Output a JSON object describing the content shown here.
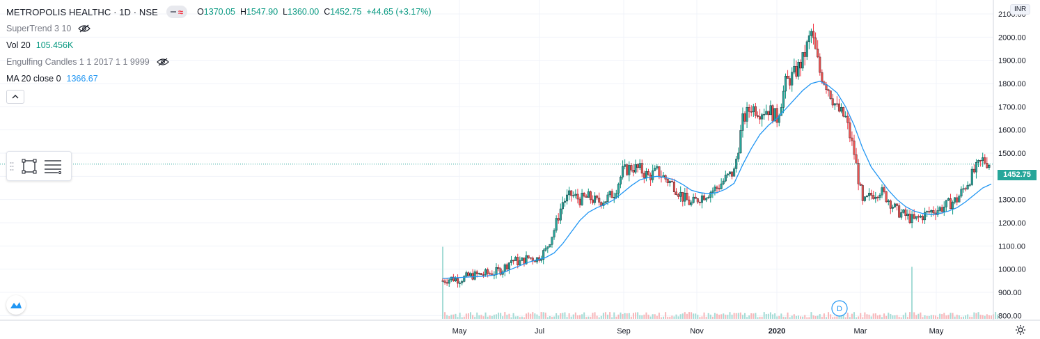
{
  "header": {
    "symbol_title": "METROPOLIS HEALTHC · 1D · NSE",
    "ohlc": {
      "open_label": "O",
      "open": "1370.05",
      "high_label": "H",
      "high": "1547.90",
      "low_label": "L",
      "low": "1360.00",
      "close_label": "C",
      "close": "1452.75",
      "change": "+44.65 (+3.17%)"
    }
  },
  "indicators": [
    {
      "name": "SuperTrend 3 10",
      "value": "",
      "hidden": true
    },
    {
      "name": "Vol 20",
      "value": "105.456K",
      "value_color": "#089981",
      "hidden": false
    },
    {
      "name": "Engulfing Candles 1 1 2017 1 1 9999",
      "value": "",
      "hidden": true
    },
    {
      "name": "MA 20 close 0",
      "value": "1366.67",
      "value_color": "#2196f3",
      "hidden": false
    }
  ],
  "price_scale": {
    "currency": "INR",
    "ticks": [
      "800.00",
      "900.00",
      "1000.00",
      "1100.00",
      "1200.00",
      "1300.00",
      "1400.00",
      "1500.00",
      "1600.00",
      "1700.00",
      "1800.00",
      "1900.00",
      "2000.00",
      "2100.00"
    ],
    "last_price": "1452.75",
    "last_price_color": "#26a69a"
  },
  "time_scale": {
    "labels": [
      "May",
      "Jul",
      "Sep",
      "Nov",
      "2020",
      "Mar",
      "May"
    ],
    "bold_labels": [
      "2020"
    ],
    "dividend_marker": "D"
  },
  "colors": {
    "up": "#089981",
    "down": "#f23645",
    "ma_line": "#2196f3",
    "grid": "#f0f3fa",
    "text": "#131722"
  },
  "icons": {
    "eye_off": "eye-crossed-icon",
    "collapse": "chevron-up-icon",
    "rectangle_tool": "rectangle-icon",
    "settings_tool": "lines-icon",
    "tv_logo": "tradingview-logo-icon",
    "chart_settings": "gear-icon"
  },
  "chart_data": {
    "type": "candlestick",
    "symbol": "METROPOLIS HEALTHC",
    "interval": "1D",
    "x_labels": [
      "May",
      "Jul",
      "Sep",
      "Nov",
      "2020",
      "Mar",
      "May"
    ],
    "y_range": [
      780,
      2160
    ],
    "closes": [
      950,
      960,
      955,
      970,
      975,
      980,
      985,
      1000,
      1040,
      1030,
      1050,
      1045,
      1080,
      1170,
      1290,
      1320,
      1300,
      1310,
      1290,
      1300,
      1330,
      1420,
      1440,
      1430,
      1400,
      1420,
      1390,
      1360,
      1310,
      1280,
      1310,
      1330,
      1350,
      1390,
      1420,
      1640,
      1700,
      1680,
      1690,
      1650,
      1800,
      1840,
      1900,
      2020,
      1850,
      1780,
      1690,
      1650,
      1500,
      1280,
      1320,
      1340,
      1300,
      1250,
      1230,
      1210,
      1230,
      1250,
      1260,
      1280,
      1300,
      1360,
      1420,
      1470,
      1452.75
    ],
    "ma20_closes": [
      960,
      962,
      964,
      966,
      968,
      970,
      975,
      985,
      1000,
      1015,
      1030,
      1040,
      1050,
      1070,
      1110,
      1160,
      1210,
      1245,
      1265,
      1280,
      1300,
      1330,
      1360,
      1385,
      1395,
      1400,
      1395,
      1385,
      1365,
      1340,
      1330,
      1325,
      1330,
      1345,
      1370,
      1450,
      1520,
      1580,
      1620,
      1650,
      1690,
      1730,
      1770,
      1800,
      1810,
      1790,
      1760,
      1700,
      1620,
      1520,
      1440,
      1390,
      1340,
      1300,
      1270,
      1250,
      1240,
      1235,
      1240,
      1250,
      1265,
      1290,
      1320,
      1350,
      1366.67
    ],
    "volume_spikes": [
      {
        "label": "May",
        "relative": 0.9
      },
      {
        "label": "Mar",
        "relative": 0.65
      }
    ]
  }
}
